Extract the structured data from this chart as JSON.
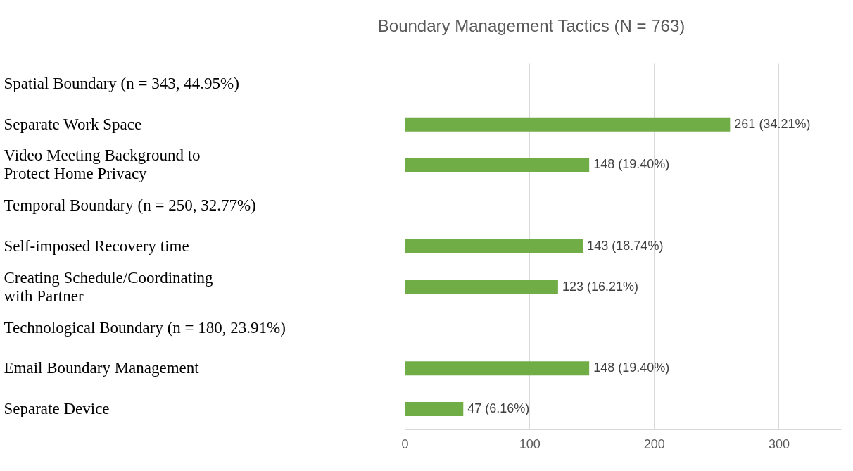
{
  "chart_data": {
    "type": "bar",
    "orientation": "horizontal",
    "title": "Boundary Management Tactics (N = 763)",
    "categories": [
      "Spatial Boundary (n = 343, 44.95%)",
      "Separate Work Space",
      "Video Meeting Background to Protect Home Privacy",
      "Temporal Boundary (n = 250, 32.77%)",
      "Self-imposed Recovery time",
      "Creating Schedule/Coordinating with Partner",
      "Technological Boundary (n = 180, 23.91%)",
      "Email Boundary Management",
      "Separate Device"
    ],
    "values": [
      null,
      261,
      148,
      null,
      143,
      123,
      null,
      148,
      47
    ],
    "value_labels": [
      null,
      "261 (34.21%)",
      "148 (19.40%)",
      null,
      "143 (18.74%)",
      "123 (16.21%)",
      null,
      "148 (19.40%)",
      "47 (6.16%)"
    ],
    "color": "#70ad47",
    "xlim": [
      0,
      350
    ],
    "xticks": [
      0,
      100,
      200,
      300
    ],
    "grid": "x"
  }
}
